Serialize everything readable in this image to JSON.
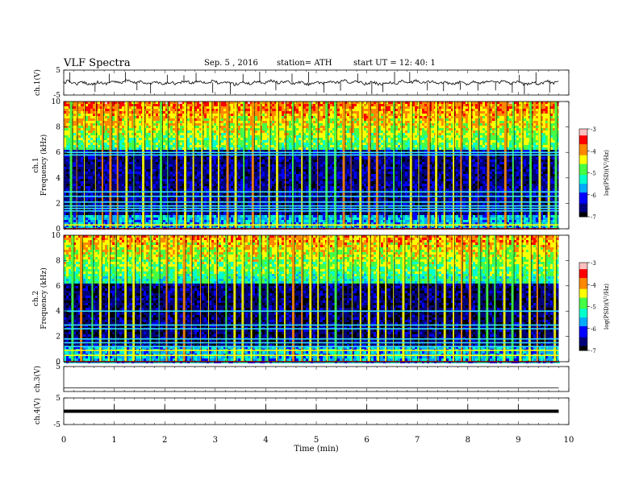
{
  "header": {
    "title": "VLF  Spectra",
    "date": "Sep. 5  , 2016",
    "station": "station= ATH",
    "start": "start  UT  =     12: 40: 1"
  },
  "chart_data": [
    {
      "type": "line",
      "panel": "ch1-waveform",
      "ylabel": "ch.1(V)",
      "ylim": [
        -5,
        5
      ],
      "yticks": [
        "5",
        "-5"
      ],
      "xlim": [
        0,
        10
      ],
      "data_xlim": [
        0,
        9.8
      ],
      "level": 0,
      "spikes_min": [
        0.12,
        0.62,
        0.9,
        1.22,
        1.45,
        1.72,
        2.05,
        2.38,
        2.62,
        2.95,
        3.3,
        3.55,
        3.88,
        4.2,
        4.52,
        4.85,
        5.15,
        5.48,
        5.82,
        6.1,
        6.32,
        6.55,
        6.85,
        7.2,
        7.52,
        7.85,
        8.2,
        8.55,
        8.88,
        9.02,
        9.12,
        9.35,
        9.62
      ]
    },
    {
      "type": "heatmap",
      "panel": "ch1-spectrogram",
      "ylabel": "ch.1\nFrequency  (kHz)",
      "yticks": [
        "0",
        "2",
        "4",
        "6",
        "8",
        "10"
      ],
      "ylim": [
        0,
        10
      ],
      "xlim": [
        0,
        10
      ],
      "data_xlim": [
        0,
        9.8
      ],
      "colorbar": {
        "label": "log(PSD)(V²/Hz)",
        "range": [
          -7,
          -3
        ],
        "ticks": [
          "-3",
          "-4",
          "-5",
          "-6",
          "-7"
        ]
      },
      "background_level_high_freq": -5.0,
      "background_level_mid_freq": -6.5,
      "emission_band_khz": [
        0,
        1.2
      ],
      "persistent_lines_khz": [
        2.9,
        2.55,
        2.1,
        1.8,
        1.6,
        1.4,
        6.0,
        5.8,
        0.3,
        0.0
      ],
      "sferics_min": [
        0.12,
        0.25,
        0.4,
        0.62,
        0.75,
        0.9,
        1.05,
        1.22,
        1.38,
        1.55,
        1.72,
        1.9,
        2.05,
        2.22,
        2.38,
        2.55,
        2.72,
        2.88,
        3.05,
        3.22,
        3.38,
        3.55,
        3.72,
        3.88,
        4.05,
        4.2,
        4.38,
        4.52,
        4.7,
        4.85,
        5.02,
        5.18,
        5.35,
        5.52,
        5.68,
        5.85,
        6.02,
        6.18,
        6.35,
        6.52,
        6.68,
        6.85,
        7.02,
        7.2,
        7.35,
        7.52,
        7.7,
        7.85,
        8.02,
        8.2,
        8.38,
        8.55,
        8.72,
        8.88,
        9.05,
        9.22,
        9.4,
        9.58,
        9.72
      ]
    },
    {
      "type": "heatmap",
      "panel": "ch2-spectrogram",
      "ylabel": "ch.2\nFrequency  (kHz)",
      "yticks": [
        "0",
        "2",
        "4",
        "6",
        "8",
        "10"
      ],
      "ylim": [
        0,
        10
      ],
      "xlim": [
        0,
        10
      ],
      "data_xlim": [
        0,
        9.8
      ],
      "colorbar": {
        "label": "log(PSD)(V²/Hz)",
        "range": [
          -7,
          -3
        ],
        "ticks": [
          "-3",
          "-4",
          "-5",
          "-6",
          "-7"
        ]
      },
      "background_level_high_freq": -5.2,
      "background_level_mid_freq": -6.6,
      "emission_band_khz": [
        0,
        1.4
      ],
      "persistent_lines_khz": [
        4.0,
        2.9,
        2.6,
        1.8,
        1.5,
        1.2,
        0.9,
        0.5,
        0.0
      ],
      "sferics_min": [
        0.15,
        0.32,
        0.55,
        0.7,
        0.88,
        1.02,
        1.2,
        1.36,
        1.52,
        1.7,
        1.88,
        2.02,
        2.2,
        2.36,
        2.52,
        2.7,
        2.86,
        3.02,
        3.2,
        3.36,
        3.52,
        3.7,
        3.86,
        4.02,
        4.2,
        4.36,
        4.52,
        4.7,
        4.86,
        5.02,
        5.2,
        5.36,
        5.52,
        5.7,
        5.86,
        6.02,
        6.2,
        6.36,
        6.52,
        6.7,
        6.86,
        7.02,
        7.2,
        7.36,
        7.52,
        7.7,
        7.86,
        8.02,
        8.2,
        8.36,
        8.52,
        8.7,
        8.86,
        9.02,
        9.2,
        9.36,
        9.52,
        9.7
      ]
    },
    {
      "type": "line",
      "panel": "ch3-waveform",
      "ylabel": "ch.3(V)",
      "ylim": [
        -5,
        5
      ],
      "yticks": [
        "5"
      ],
      "xlim": [
        0,
        10
      ],
      "data_xlim": [
        0,
        9.8
      ],
      "level": -3.5
    },
    {
      "type": "line",
      "panel": "ch4-waveform",
      "ylabel": "ch.4(V)",
      "ylim": [
        -5,
        5
      ],
      "yticks": [
        "5",
        "-5"
      ],
      "xlim": [
        0,
        10
      ],
      "data_xlim": [
        0,
        9.8
      ],
      "level": 0,
      "spikes_min": [
        1.0,
        2.0,
        3.0,
        4.0,
        5.0,
        6.0,
        7.0,
        8.0,
        9.0
      ]
    }
  ],
  "xaxis": {
    "label": "Time  (min)",
    "ticks": [
      "0",
      "1",
      "2",
      "3",
      "4",
      "5",
      "6",
      "7",
      "8",
      "9",
      "10"
    ]
  },
  "colors": {
    "waveform": "#000000",
    "colormap": [
      "#000000",
      "#00007a",
      "#0000ff",
      "#00aaff",
      "#00ffcc",
      "#44ff44",
      "#ffff00",
      "#ff8800",
      "#ff0000",
      "#ffc0c0"
    ]
  }
}
